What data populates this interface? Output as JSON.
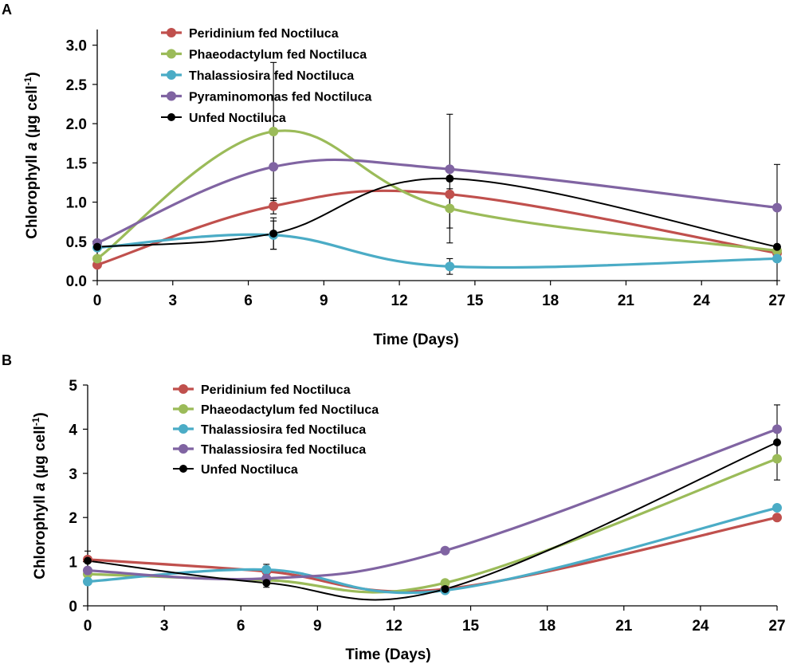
{
  "chart_data": [
    {
      "panel": "A",
      "type": "line",
      "title": "",
      "xlabel": "Time (Days)",
      "ylabel_main": "Chlorophyll ",
      "ylabel_italic": "a",
      "ylabel_unit": " (µg cell",
      "ylabel_sup": "-1",
      "ylabel_close": ")",
      "xlim": [
        0,
        27
      ],
      "ylim": [
        0,
        3.2
      ],
      "xticks": [
        0,
        3,
        6,
        9,
        12,
        15,
        18,
        21,
        24,
        27
      ],
      "xtick_labels": [
        "0",
        "3",
        "6",
        "9",
        "12",
        "15",
        "18",
        "21",
        "24",
        "27"
      ],
      "yticks": [
        0,
        0.5,
        1,
        1.5,
        2,
        2.5,
        3
      ],
      "ytick_labels": [
        "0.0",
        "0.5",
        "1.0",
        "1.5",
        "2.0",
        "2.5",
        "3.0"
      ],
      "legend_position": "top-center",
      "series": [
        {
          "name": "Peridinium fed Noctiluca",
          "color": "#c0504d",
          "x": [
            0,
            7,
            14,
            27
          ],
          "values": [
            0.2,
            0.95,
            1.1,
            0.35
          ],
          "errors": [
            0,
            0.1,
            0,
            0
          ]
        },
        {
          "name": "Phaeodactylum fed Noctiluca",
          "color": "#9bbb59",
          "x": [
            0,
            7,
            14,
            27
          ],
          "values": [
            0.28,
            1.9,
            0.92,
            0.38
          ],
          "errors": [
            0,
            0.88,
            0.25,
            0
          ]
        },
        {
          "name": "Thalassiosira fed Noctiluca",
          "color": "#4bacc6",
          "x": [
            0,
            7,
            14,
            27
          ],
          "values": [
            0.42,
            0.58,
            0.18,
            0.28
          ],
          "errors": [
            0,
            0.18,
            0.1,
            0
          ]
        },
        {
          "name": "Pyraminomonas fed Noctiluca",
          "color": "#8064a2",
          "x": [
            0,
            7,
            14,
            27
          ],
          "values": [
            0.48,
            1.45,
            1.42,
            0.93
          ],
          "errors": [
            0,
            0,
            0,
            0
          ]
        },
        {
          "name": "Unfed Noctiluca",
          "color": "#000000",
          "x": [
            0,
            7,
            14,
            27
          ],
          "values": [
            0.43,
            0.6,
            1.3,
            0.43
          ],
          "errors": [
            0,
            0.2,
            0.82,
            1.05
          ]
        }
      ]
    },
    {
      "panel": "B",
      "type": "line",
      "title": "",
      "xlabel": "Time (Days)",
      "ylabel_main": "Chlorophyll ",
      "ylabel_italic": "a",
      "ylabel_unit": " (µg cell",
      "ylabel_sup": "-1",
      "ylabel_close": ")",
      "xlim": [
        0,
        27
      ],
      "ylim": [
        0,
        5
      ],
      "xticks": [
        0,
        3,
        6,
        9,
        12,
        15,
        18,
        21,
        24,
        27
      ],
      "xtick_labels": [
        "0",
        "3",
        "6",
        "9",
        "12",
        "15",
        "18",
        "21",
        "24",
        "27"
      ],
      "yticks": [
        0,
        1,
        2,
        3,
        4,
        5
      ],
      "ytick_labels": [
        "0",
        "1",
        "2",
        "3",
        "4",
        "5"
      ],
      "legend_position": "top-center",
      "series": [
        {
          "name": "Peridinium fed Noctiluca",
          "color": "#c0504d",
          "x": [
            0,
            7,
            14,
            27
          ],
          "values": [
            1.05,
            0.78,
            0.38,
            2.0
          ],
          "errors": [
            0,
            0,
            0,
            0
          ]
        },
        {
          "name": "Phaeodactylum fed Noctiluca",
          "color": "#9bbb59",
          "x": [
            0,
            7,
            14,
            27
          ],
          "values": [
            0.72,
            0.58,
            0.52,
            3.33
          ],
          "errors": [
            0,
            0,
            0,
            0
          ]
        },
        {
          "name": "Thalassiosira fed Noctiluca",
          "color": "#4bacc6",
          "x": [
            0,
            7,
            14,
            27
          ],
          "values": [
            0.55,
            0.82,
            0.35,
            2.22
          ],
          "errors": [
            0,
            0.12,
            0,
            0
          ]
        },
        {
          "name": "Thalassiosira fed Noctiluca",
          "color": "#8064a2",
          "x": [
            0,
            7,
            14,
            27
          ],
          "values": [
            0.8,
            0.62,
            1.25,
            4.0
          ],
          "errors": [
            0,
            0,
            0,
            0
          ]
        },
        {
          "name": "Unfed Noctiluca",
          "color": "#000000",
          "x": [
            0,
            7,
            14,
            27
          ],
          "values": [
            1.02,
            0.52,
            0.38,
            3.7
          ],
          "errors": [
            0.22,
            0.1,
            0,
            0.85
          ]
        }
      ]
    }
  ]
}
